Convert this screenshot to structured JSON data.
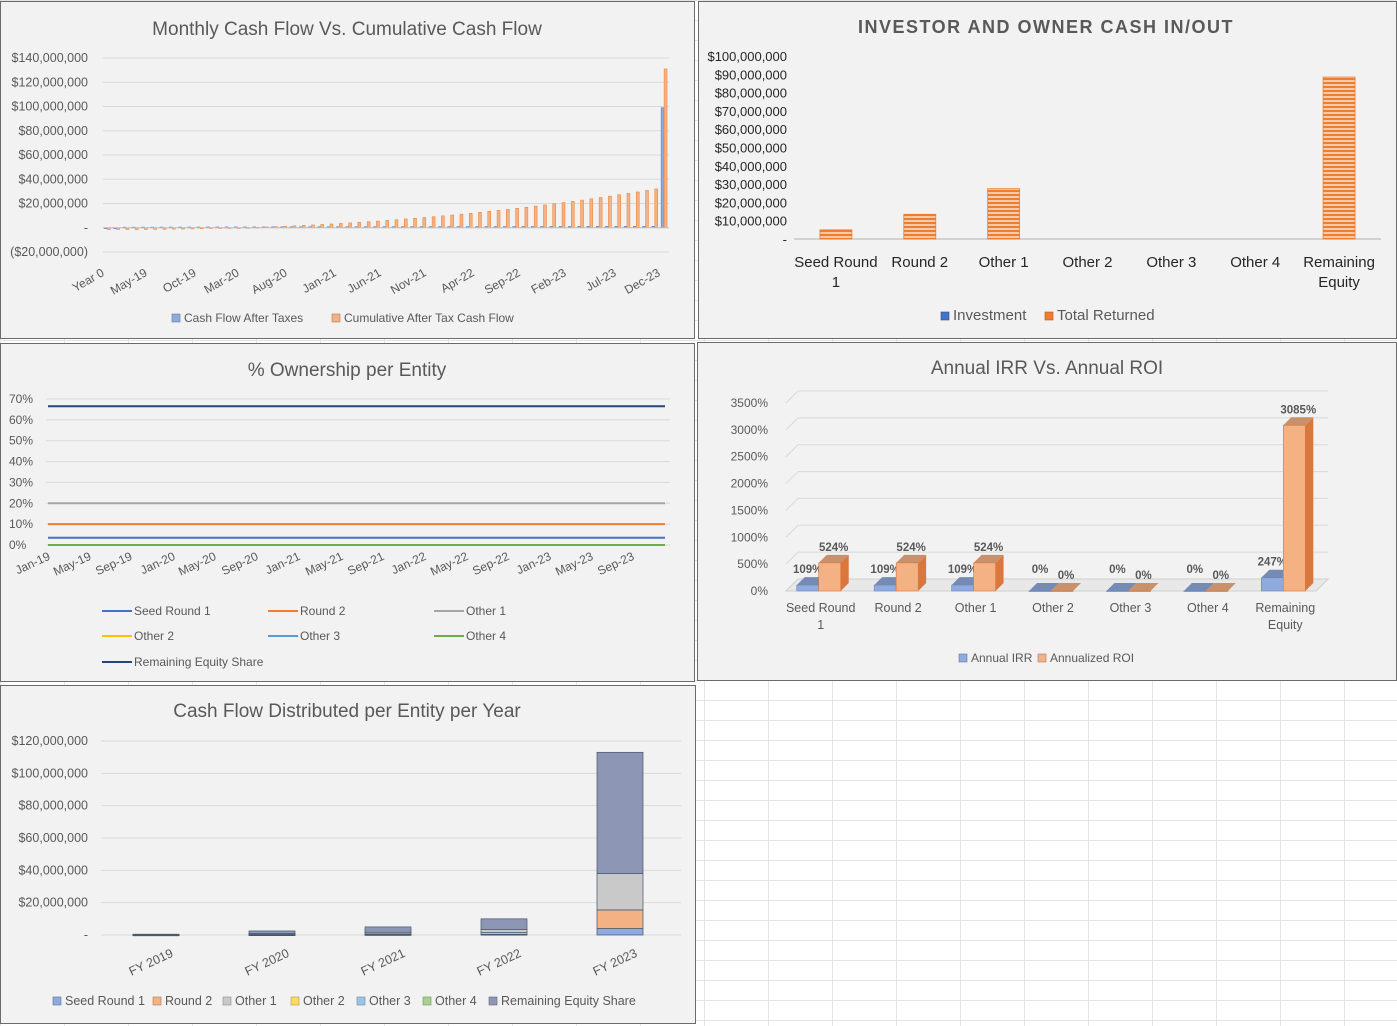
{
  "chart_data": [
    {
      "id": "c1",
      "type": "bar",
      "title": "Monthly Cash Flow Vs. Cumulative Cash Flow",
      "yticks": [
        "($20,000,000)",
        "-",
        "$20,000,000",
        "$40,000,000",
        "$60,000,000",
        "$80,000,000",
        "$100,000,000",
        "$120,000,000",
        "$140,000,000"
      ],
      "ylim": [
        -20000000,
        140000000
      ],
      "xtick_labels": [
        "Year 0",
        "May-19",
        "Oct-19",
        "Mar-20",
        "Aug-20",
        "Jan-21",
        "Jun-21",
        "Nov-21",
        "Apr-22",
        "Sep-22",
        "Feb-23",
        "Jul-23",
        "Dec-23"
      ],
      "series": [
        {
          "name": "Cash Flow After Taxes",
          "color": "#8faadc"
        },
        {
          "name": "Cumulative After Tax Cash Flow",
          "color": "#f4b183"
        }
      ],
      "series_summary": {
        "periods": 60,
        "cumulative_start": -1500000,
        "cumulative_end_before_last": 32000000,
        "last_cash_flow": 99000000,
        "last_cumulative": 131000000
      },
      "legend": "bottom"
    },
    {
      "id": "c2",
      "type": "bar",
      "title": "INVESTOR AND OWNER CASH IN/OUT",
      "yticks": [
        "-",
        "$10,000,000",
        "$20,000,000",
        "$30,000,000",
        "$40,000,000",
        "$50,000,000",
        "$60,000,000",
        "$70,000,000",
        "$80,000,000",
        "$90,000,000",
        "$100,000,000"
      ],
      "ylim": [
        0,
        100000000
      ],
      "categories": [
        "Seed Round\n1",
        "Round 2",
        "Other 1",
        "Other 2",
        "Other 3",
        "Other 4",
        "Remaining\nEquity"
      ],
      "series": [
        {
          "name": "Investment",
          "color": "#4472c4",
          "values": [
            0,
            0,
            0,
            0,
            0,
            0,
            0
          ]
        },
        {
          "name": "Total Returned",
          "color": "#ed7d31",
          "values": [
            5000000,
            13500000,
            27500000,
            0,
            0,
            0,
            88500000
          ]
        }
      ],
      "legend": "bottom"
    },
    {
      "id": "c3",
      "type": "line",
      "title": "% Ownership per Entity",
      "yticks": [
        "0%",
        "10%",
        "20%",
        "30%",
        "40%",
        "50%",
        "60%",
        "70%"
      ],
      "ylim": [
        0,
        70
      ],
      "xtick_labels": [
        "Jan-19",
        "May-19",
        "Sep-19",
        "Jan-20",
        "May-20",
        "Sep-20",
        "Jan-21",
        "May-21",
        "Sep-21",
        "Jan-22",
        "May-22",
        "Sep-22",
        "Jan-23",
        "May-23",
        "Sep-23"
      ],
      "series": [
        {
          "name": "Seed Round 1",
          "color": "#4472c4",
          "value": 3.5
        },
        {
          "name": "Round 2",
          "color": "#ed7d31",
          "value": 10
        },
        {
          "name": "Other 1",
          "color": "#a5a5a5",
          "value": 20
        },
        {
          "name": "Other 2",
          "color": "#ffc000",
          "value": 0
        },
        {
          "name": "Other 3",
          "color": "#5b9bd5",
          "value": 0
        },
        {
          "name": "Other 4",
          "color": "#70ad47",
          "value": 0
        },
        {
          "name": "Remaining Equity Share",
          "color": "#264478",
          "value": 66.5
        }
      ],
      "legend": "bottom"
    },
    {
      "id": "c4",
      "type": "bar",
      "title": "Annual IRR Vs. Annual ROI",
      "yticks": [
        "0%",
        "500%",
        "1000%",
        "1500%",
        "2000%",
        "2500%",
        "3000%",
        "3500%"
      ],
      "ylim": [
        0,
        3500
      ],
      "categories": [
        "Seed Round\n1",
        "Round 2",
        "Other 1",
        "Other 2",
        "Other 3",
        "Other 4",
        "Remaining\nEquity"
      ],
      "series": [
        {
          "name": "Annual IRR",
          "color": "#8faadc",
          "values": [
            109,
            109,
            109,
            0,
            0,
            0,
            247
          ],
          "labels": [
            "109%",
            "109%",
            "109%",
            "0%",
            "0%",
            "0%",
            "247%"
          ]
        },
        {
          "name": "Annualized ROI",
          "color": "#f4b183",
          "values": [
            524,
            524,
            524,
            0,
            0,
            0,
            3085
          ],
          "labels": [
            "524%",
            "524%",
            "524%",
            "0%",
            "0%",
            "0%",
            "3085%"
          ]
        }
      ],
      "legend": "bottom"
    },
    {
      "id": "c5",
      "type": "bar",
      "stacked": true,
      "title": "Cash Flow Distributed per Entity per Year",
      "yticks": [
        "-",
        "$20,000,000",
        "$40,000,000",
        "$60,000,000",
        "$80,000,000",
        "$100,000,000",
        "$120,000,000"
      ],
      "ylim": [
        0,
        120000000
      ],
      "categories": [
        "FY 2019",
        "FY 2020",
        "FY 2021",
        "FY 2022",
        "FY 2023"
      ],
      "series": [
        {
          "name": "Seed Round 1",
          "color": "#8faadc",
          "values": [
            20000,
            100000,
            200000,
            400000,
            4000000
          ]
        },
        {
          "name": "Round 2",
          "color": "#f4b183",
          "values": [
            50000,
            250000,
            500000,
            1100000,
            11500000
          ]
        },
        {
          "name": "Other 1",
          "color": "#c9c9c9",
          "values": [
            100000,
            500000,
            1000000,
            2000000,
            22500000
          ]
        },
        {
          "name": "Other 2",
          "color": "#ffd966",
          "values": [
            0,
            0,
            0,
            0,
            0
          ]
        },
        {
          "name": "Other 3",
          "color": "#9dc3e6",
          "values": [
            0,
            0,
            0,
            0,
            0
          ]
        },
        {
          "name": "Other 4",
          "color": "#a9d18e",
          "values": [
            0,
            0,
            0,
            0,
            0
          ]
        },
        {
          "name": "Remaining Equity Share",
          "color": "#8e96b5",
          "values": [
            330000,
            1650000,
            3300000,
            6500000,
            75000000
          ]
        }
      ],
      "legend": "bottom"
    }
  ]
}
